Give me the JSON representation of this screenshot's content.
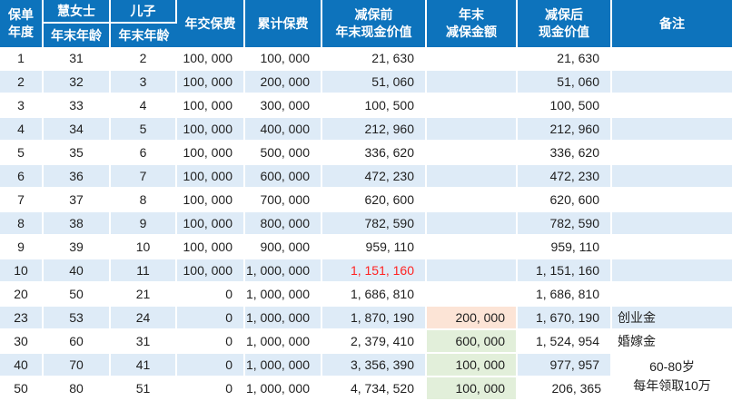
{
  "colors": {
    "header_bg": "#0d73bc",
    "header_text": "#ffffff",
    "stripe_bg": "#deebf7",
    "fill_orange": "#fce4d6",
    "fill_green": "#e2efda",
    "text": "#1f1f1f",
    "red_text": "#ff2222",
    "cell_gap": "#ffffff"
  },
  "table": {
    "header": {
      "policy_year": "保单\n年度",
      "person1": "慧女士",
      "person1_sub": "年末年龄",
      "person2": "儿子",
      "person2_sub": "年末年龄",
      "annual_premium": "年交保费",
      "cumulative_premium": "累计保费",
      "cv_before": "减保前\n年末现金价值",
      "reduction": "年末\n减保金额",
      "cv_after": "减保后\n现金价值",
      "note": "备注"
    },
    "rows": [
      {
        "year": "1",
        "hui_age": "31",
        "son_age": "2",
        "annual": "100, 000",
        "cumulative": "100, 000",
        "before": "21, 630",
        "reduction": "",
        "after": "21, 630",
        "note": ""
      },
      {
        "year": "2",
        "hui_age": "32",
        "son_age": "3",
        "annual": "100, 000",
        "cumulative": "200, 000",
        "before": "51, 060",
        "reduction": "",
        "after": "51, 060",
        "note": ""
      },
      {
        "year": "3",
        "hui_age": "33",
        "son_age": "4",
        "annual": "100, 000",
        "cumulative": "300, 000",
        "before": "100, 500",
        "reduction": "",
        "after": "100, 500",
        "note": ""
      },
      {
        "year": "4",
        "hui_age": "34",
        "son_age": "5",
        "annual": "100, 000",
        "cumulative": "400, 000",
        "before": "212, 960",
        "reduction": "",
        "after": "212, 960",
        "note": ""
      },
      {
        "year": "5",
        "hui_age": "35",
        "son_age": "6",
        "annual": "100, 000",
        "cumulative": "500, 000",
        "before": "336, 620",
        "reduction": "",
        "after": "336, 620",
        "note": ""
      },
      {
        "year": "6",
        "hui_age": "36",
        "son_age": "7",
        "annual": "100, 000",
        "cumulative": "600, 000",
        "before": "472, 230",
        "reduction": "",
        "after": "472, 230",
        "note": ""
      },
      {
        "year": "7",
        "hui_age": "37",
        "son_age": "8",
        "annual": "100, 000",
        "cumulative": "700, 000",
        "before": "620, 600",
        "reduction": "",
        "after": "620, 600",
        "note": ""
      },
      {
        "year": "8",
        "hui_age": "38",
        "son_age": "9",
        "annual": "100, 000",
        "cumulative": "800, 000",
        "before": "782, 590",
        "reduction": "",
        "after": "782, 590",
        "note": ""
      },
      {
        "year": "9",
        "hui_age": "39",
        "son_age": "10",
        "annual": "100, 000",
        "cumulative": "900, 000",
        "before": "959, 110",
        "reduction": "",
        "after": "959, 110",
        "note": ""
      },
      {
        "year": "10",
        "hui_age": "40",
        "son_age": "11",
        "annual": "100, 000",
        "cumulative": "1, 000, 000",
        "before": "1, 151, 160",
        "before_red": true,
        "reduction": "",
        "after": "1, 151, 160",
        "note": ""
      },
      {
        "year": "20",
        "hui_age": "50",
        "son_age": "21",
        "annual": "0",
        "cumulative": "1, 000, 000",
        "before": "1, 686, 810",
        "reduction": "",
        "after": "1, 686, 810",
        "note": ""
      },
      {
        "year": "23",
        "hui_age": "53",
        "son_age": "24",
        "annual": "0",
        "cumulative": "1, 000, 000",
        "before": "1, 870, 190",
        "reduction": "200, 000",
        "reduction_fill": "orange",
        "after": "1, 670, 190",
        "note": "创业金"
      },
      {
        "year": "30",
        "hui_age": "60",
        "son_age": "31",
        "annual": "0",
        "cumulative": "1, 000, 000",
        "before": "2, 379, 410",
        "reduction": "600, 000",
        "reduction_fill": "green",
        "after": "1, 524, 954",
        "note": "婚嫁金"
      },
      {
        "year": "40",
        "hui_age": "70",
        "son_age": "41",
        "annual": "0",
        "cumulative": "1, 000, 000",
        "before": "3, 356, 390",
        "reduction": "100, 000",
        "reduction_fill": "green",
        "after": "977, 957",
        "note": "60-80岁\n每年领取10万",
        "note_rowspan": 2
      },
      {
        "year": "50",
        "hui_age": "80",
        "son_age": "51",
        "annual": "0",
        "cumulative": "1, 000, 000",
        "before": "4, 734, 520",
        "reduction": "100, 000",
        "reduction_fill": "green",
        "after": "206, 365",
        "note_omit": true
      }
    ]
  }
}
